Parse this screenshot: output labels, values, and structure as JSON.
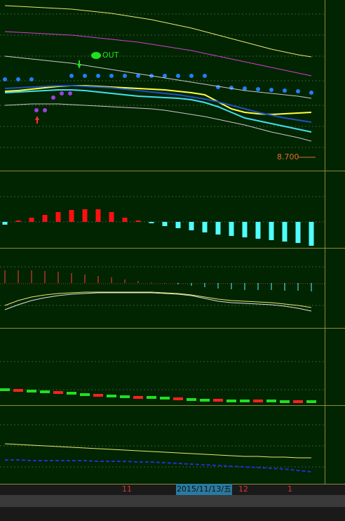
{
  "chart_data": [
    {
      "type": "line",
      "ylim": [
        0,
        243
      ],
      "categories": [
        null,
        null,
        null,
        null,
        null,
        null,
        null,
        null,
        null,
        null,
        null,
        null,
        null,
        null,
        null,
        null,
        null,
        null,
        null,
        null,
        null,
        null,
        null,
        null
      ],
      "annotations": [
        "OUT",
        "8.700"
      ],
      "series": [
        {
          "color": "#e8e870",
          "width": 1,
          "values": [
            235,
            234,
            233,
            232,
            231,
            230,
            228,
            226,
            224,
            221,
            218,
            215,
            211,
            207,
            203,
            198,
            193,
            188,
            183,
            178,
            173,
            169,
            165,
            162
          ]
        },
        {
          "color": "#d040d0",
          "width": 1,
          "values": [
            198,
            197,
            196,
            195,
            194,
            193,
            191,
            189,
            187,
            185,
            183,
            180,
            177,
            174,
            171,
            167,
            163,
            159,
            155,
            151,
            147,
            143,
            139,
            135
          ]
        },
        {
          "color": "#c8c8c8",
          "width": 1,
          "values": [
            163,
            161,
            159,
            157,
            155,
            153,
            150,
            147,
            144,
            141,
            138,
            135,
            132,
            129,
            126,
            123,
            120,
            117,
            114,
            112,
            110,
            108,
            106,
            103
          ]
        },
        {
          "color": "#c8c8c8",
          "width": 1,
          "values": [
            93,
            94,
            95,
            95,
            95,
            94,
            93,
            92,
            91,
            90,
            89,
            88,
            86,
            83,
            80,
            77,
            73,
            69,
            65,
            60,
            55,
            51,
            47,
            42
          ]
        },
        {
          "color": "#2050c0",
          "width": 2,
          "values": [
            117,
            118,
            119,
            120,
            121,
            121,
            120,
            119,
            118,
            116,
            114,
            112,
            110,
            108,
            105,
            102,
            98,
            93,
            88,
            83,
            79,
            75,
            72,
            69
          ]
        },
        {
          "color": "#40e0f0",
          "width": 2,
          "values": [
            111,
            112,
            113,
            114,
            115,
            115,
            114,
            112,
            110,
            108,
            106,
            105,
            104,
            103,
            101,
            97,
            91,
            83,
            75,
            71,
            67,
            63,
            59,
            55
          ]
        },
        {
          "color": "#ffff40",
          "width": 2,
          "values": [
            113,
            114,
            116,
            118,
            120,
            121,
            121,
            120,
            119,
            118,
            117,
            116,
            115,
            113,
            111,
            108,
            98,
            88,
            83,
            81,
            80,
            81,
            82,
            83
          ]
        },
        {
          "type": "dots",
          "color": "#2080ff",
          "values": [
            130,
            130,
            130,
            null,
            null,
            135,
            135,
            135,
            135,
            135,
            135,
            135,
            135,
            135,
            135,
            135,
            119,
            118,
            117,
            116,
            115,
            114,
            113,
            111
          ]
        }
      ]
    },
    {
      "type": "bar",
      "ylim": [
        -37,
        73
      ],
      "up_color": "#ff1010",
      "down_color": "#50ffff",
      "categories": [
        null,
        null,
        null,
        null,
        null,
        null,
        null,
        null,
        null,
        null,
        null,
        null,
        null,
        null,
        null,
        null,
        null,
        null,
        null,
        null,
        null,
        null,
        null,
        null
      ],
      "series": [
        {
          "values": [
            -4,
            2,
            6,
            10,
            14,
            17,
            18,
            18,
            14,
            6,
            2,
            -2,
            -6,
            -9,
            -12,
            -15,
            -18,
            -20,
            -22,
            -24,
            -26,
            -28,
            -30,
            -34
          ]
        }
      ]
    },
    {
      "type": "bar",
      "ylim": [
        -64,
        50
      ],
      "up_color": "#ff4040",
      "down_color": "#50ffff",
      "thin": true,
      "categories": [
        null,
        null,
        null,
        null,
        null,
        null,
        null,
        null,
        null,
        null,
        null,
        null,
        null,
        null,
        null,
        null,
        null,
        null,
        null,
        null,
        null,
        null,
        null,
        null
      ],
      "series": [
        {
          "values": [
            18,
            18,
            18,
            17,
            16,
            14,
            12,
            10,
            8,
            5,
            3,
            1,
            0,
            -2,
            -4,
            -6,
            -8,
            -9,
            -10,
            -10,
            -10,
            -11,
            -11,
            -12
          ]
        },
        {
          "type": "line",
          "color": "#e8e870",
          "width": 1,
          "values": [
            -32,
            -25,
            -20,
            -17,
            -15,
            -14,
            -13,
            -13,
            -13,
            -13,
            -13,
            -13,
            -14,
            -15,
            -17,
            -20,
            -23,
            -25,
            -26,
            -27,
            -28,
            -30,
            -32,
            -35
          ]
        },
        {
          "type": "line",
          "color": "#e0e0e0",
          "width": 1,
          "values": [
            -38,
            -31,
            -25,
            -21,
            -18,
            -16,
            -15,
            -14,
            -14,
            -14,
            -14,
            -14,
            -15,
            -16,
            -18,
            -22,
            -26,
            -28,
            -29,
            -30,
            -31,
            -33,
            -36,
            -40
          ]
        }
      ]
    },
    {
      "type": "tick",
      "ylim": [
        0,
        110
      ],
      "color": "#20e020",
      "categories": [
        null,
        null,
        null,
        null,
        null,
        null,
        null,
        null,
        null,
        null,
        null,
        null,
        null,
        null,
        null,
        null,
        null,
        null,
        null,
        null,
        null,
        null,
        null,
        null
      ],
      "series": [
        {
          "values": [
            22,
            21,
            20,
            19,
            18,
            17,
            15,
            14,
            13,
            12,
            11,
            11,
            10,
            9,
            8,
            7,
            7,
            6,
            6,
            6,
            6,
            5,
            5,
            5
          ]
        }
      ]
    },
    {
      "type": "line",
      "ylim": [
        0,
        113
      ],
      "categories": [
        null,
        null,
        null,
        null,
        null,
        null,
        null,
        null,
        null,
        null,
        null,
        null,
        null,
        null,
        null,
        null,
        null,
        null,
        null,
        null,
        null,
        null,
        null,
        null
      ],
      "series": [
        {
          "color": "#e8e870",
          "width": 1,
          "values": [
            58,
            57,
            56,
            55,
            54,
            53,
            52,
            51,
            50,
            49,
            48,
            47,
            46,
            45,
            44,
            43,
            42,
            41,
            40,
            40,
            39,
            39,
            38,
            38
          ]
        },
        {
          "color": "#2030d0",
          "width": 2,
          "dash": true,
          "values": [
            35,
            35,
            34,
            34,
            34,
            34,
            34,
            33,
            33,
            33,
            32,
            32,
            31,
            30,
            29,
            28,
            27,
            26,
            25,
            24,
            23,
            22,
            20,
            18
          ]
        }
      ]
    }
  ],
  "x_axis_labels": [
    "11",
    "2015/11/13/五",
    "12",
    "1"
  ]
}
